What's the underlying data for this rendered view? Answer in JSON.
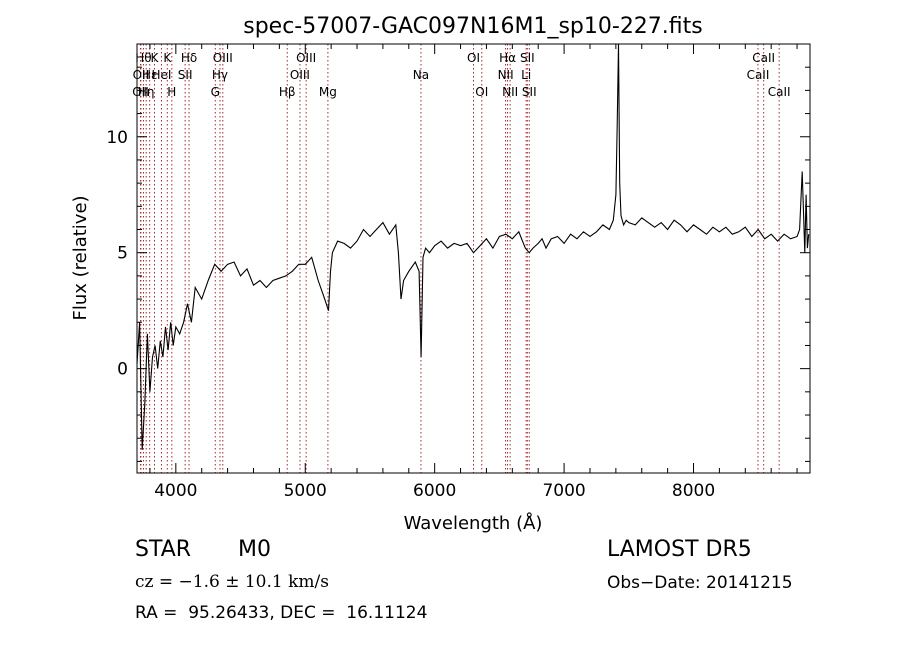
{
  "chart_data": {
    "type": "line",
    "title": "spec-57007-GAC097N16M1_sp10-227.fits",
    "xlabel": "Wavelength (Å)",
    "ylabel": "Flux (relative)",
    "xlim": [
      3700,
      8900
    ],
    "ylim": [
      -4.5,
      14
    ],
    "xticks": [
      4000,
      5000,
      6000,
      7000,
      8000
    ],
    "yticks": [
      0,
      5,
      10
    ],
    "grid": false,
    "line_color": "#000000",
    "marker_color": "#a52a2a",
    "spectrum": {
      "x": [
        3700,
        3720,
        3740,
        3760,
        3780,
        3800,
        3820,
        3840,
        3860,
        3880,
        3900,
        3920,
        3940,
        3960,
        3980,
        4000,
        4030,
        4060,
        4090,
        4120,
        4150,
        4200,
        4250,
        4300,
        4350,
        4400,
        4450,
        4500,
        4550,
        4600,
        4650,
        4700,
        4750,
        4800,
        4850,
        4900,
        4950,
        5000,
        5050,
        5100,
        5150,
        5180,
        5195,
        5210,
        5250,
        5300,
        5350,
        5400,
        5450,
        5500,
        5550,
        5600,
        5650,
        5700,
        5720,
        5740,
        5760,
        5800,
        5850,
        5880,
        5895,
        5910,
        5930,
        5960,
        6000,
        6050,
        6100,
        6150,
        6200,
        6250,
        6300,
        6350,
        6400,
        6450,
        6500,
        6550,
        6600,
        6650,
        6700,
        6730,
        6760,
        6800,
        6830,
        6860,
        6900,
        6950,
        7000,
        7050,
        7100,
        7150,
        7200,
        7250,
        7300,
        7350,
        7380,
        7400,
        7410,
        7420,
        7430,
        7440,
        7460,
        7480,
        7500,
        7550,
        7600,
        7650,
        7700,
        7750,
        7800,
        7850,
        7900,
        7950,
        8000,
        8050,
        8100,
        8150,
        8200,
        8250,
        8300,
        8350,
        8400,
        8450,
        8500,
        8550,
        8600,
        8650,
        8700,
        8750,
        8800,
        8820,
        8840,
        8860,
        8870,
        8880,
        8890
      ],
      "y": [
        0.2,
        2.0,
        -3.5,
        -1.5,
        1.5,
        -1.0,
        0.5,
        1.0,
        0.0,
        1.2,
        0.5,
        1.8,
        0.8,
        2.0,
        1.0,
        1.8,
        1.5,
        2.0,
        2.8,
        2.0,
        3.5,
        3.0,
        3.8,
        4.5,
        4.2,
        4.5,
        4.6,
        4.0,
        4.3,
        3.6,
        3.8,
        3.5,
        3.8,
        3.9,
        4.0,
        4.2,
        4.5,
        4.5,
        4.8,
        3.8,
        3.0,
        2.5,
        4.2,
        5.0,
        5.5,
        5.4,
        5.2,
        5.5,
        6.0,
        5.7,
        6.0,
        6.3,
        5.8,
        6.2,
        5.0,
        3.0,
        3.8,
        4.2,
        4.6,
        4.2,
        0.5,
        4.8,
        5.2,
        5.0,
        5.3,
        5.5,
        5.2,
        5.4,
        5.3,
        5.4,
        5.0,
        5.3,
        5.6,
        5.2,
        5.7,
        5.8,
        5.6,
        5.9,
        5.2,
        5.0,
        5.2,
        5.4,
        5.6,
        5.2,
        5.6,
        5.7,
        5.4,
        5.8,
        5.6,
        5.9,
        5.7,
        5.9,
        6.2,
        6.0,
        6.4,
        7.5,
        10.5,
        14.0,
        8.0,
        6.6,
        6.2,
        6.4,
        6.3,
        6.2,
        6.5,
        6.3,
        6.1,
        6.3,
        6.0,
        6.4,
        6.2,
        5.9,
        6.2,
        6.0,
        5.8,
        6.1,
        5.9,
        6.1,
        5.8,
        5.9,
        6.1,
        5.7,
        6.0,
        5.6,
        5.8,
        5.5,
        5.8,
        5.6,
        5.7,
        6.0,
        8.5,
        5.0,
        7.5,
        5.2,
        5.8
      ]
    },
    "lines": [
      {
        "wavelength": 3727,
        "label": "OII",
        "row": 2
      },
      {
        "wavelength": 3730,
        "label": "OII",
        "row": 1
      },
      {
        "wavelength": 3750,
        "label": "Hθ",
        "row": 0
      },
      {
        "wavelength": 3771,
        "label": "Hη",
        "row": 2
      },
      {
        "wavelength": 3798,
        "label": "Hε",
        "row": 1
      },
      {
        "wavelength": 3835,
        "label": "K",
        "row": 0
      },
      {
        "wavelength": 3889,
        "label": "HeI",
        "row": 1
      },
      {
        "wavelength": 3934,
        "label": "K",
        "row": 0
      },
      {
        "wavelength": 3969,
        "label": "H",
        "row": 2
      },
      {
        "wavelength": 4072,
        "label": "SII",
        "row": 1
      },
      {
        "wavelength": 4102,
        "label": "Hδ",
        "row": 0
      },
      {
        "wavelength": 4305,
        "label": "G",
        "row": 2
      },
      {
        "wavelength": 4341,
        "label": "Hγ",
        "row": 1
      },
      {
        "wavelength": 4363,
        "label": "OIII",
        "row": 0
      },
      {
        "wavelength": 4861,
        "label": "Hβ",
        "row": 2
      },
      {
        "wavelength": 4959,
        "label": "OIII",
        "row": 1
      },
      {
        "wavelength": 5007,
        "label": "OIII",
        "row": 0
      },
      {
        "wavelength": 5175,
        "label": "Mg",
        "row": 2
      },
      {
        "wavelength": 5894,
        "label": "Na",
        "row": 1
      },
      {
        "wavelength": 6300,
        "label": "OI",
        "row": 0
      },
      {
        "wavelength": 6364,
        "label": "OI",
        "row": 2
      },
      {
        "wavelength": 6548,
        "label": "NII",
        "row": 1
      },
      {
        "wavelength": 6563,
        "label": "Hα",
        "row": 0
      },
      {
        "wavelength": 6583,
        "label": "NII",
        "row": 2
      },
      {
        "wavelength": 6707,
        "label": "Li",
        "row": 1
      },
      {
        "wavelength": 6716,
        "label": "SII",
        "row": 0
      },
      {
        "wavelength": 6731,
        "label": "SII",
        "row": 2
      },
      {
        "wavelength": 8498,
        "label": "CaII",
        "row": 1
      },
      {
        "wavelength": 8542,
        "label": "CaII",
        "row": 0
      },
      {
        "wavelength": 8662,
        "label": "CaII",
        "row": 2
      }
    ]
  },
  "info": {
    "object_class": "STAR",
    "subclass": "M0",
    "survey": "LAMOST DR5",
    "cz": "cz = −1.6 ± 10.1 km/s",
    "obs_date": "Obs−Date: 20141215",
    "radec": "RA =  95.26433, DEC =  16.11124"
  }
}
